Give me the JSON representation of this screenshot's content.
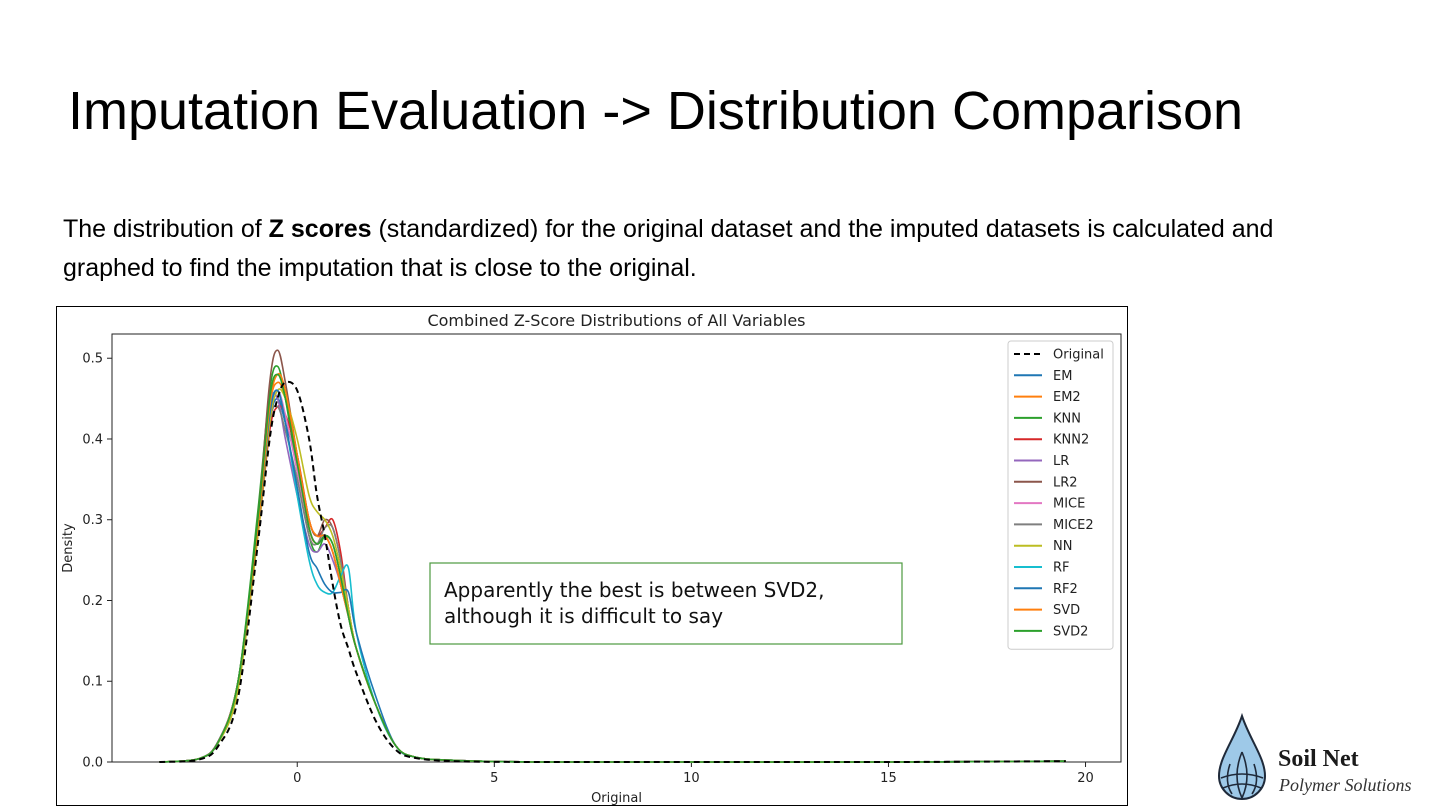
{
  "slide": {
    "title": "Imputation Evaluation -> Distribution Comparison",
    "body_prefix": "The distribution of ",
    "body_bold": "Z scores",
    "body_suffix": " (standardized) for the original dataset and the imputed datasets is calculated and graphed to find the imputation that is close to the original."
  },
  "logo": {
    "name": "Soil Net",
    "subtitle": "Polymer Solutions",
    "colors": {
      "drop": "#9ec9e8",
      "outline": "#1f2a3a"
    }
  },
  "chart_data": {
    "type": "line",
    "title": "Combined Z-Score Distributions of All Variables",
    "xlabel": "Original",
    "ylabel": "Density",
    "xlim": [
      -4.7,
      20.9
    ],
    "ylim": [
      0,
      0.53
    ],
    "x_ticks": [
      0,
      5,
      10,
      15,
      20
    ],
    "y_ticks": [
      0.0,
      0.1,
      0.2,
      0.3,
      0.4,
      0.5
    ],
    "grid": false,
    "legend_position": "upper right",
    "annotation": {
      "lines": [
        "Apparently the best is between SVD2,",
        "although it is difficult to say"
      ],
      "border_color": "#4e9a3f"
    },
    "x": [
      -3.5,
      -2.5,
      -2.0,
      -1.5,
      -1.0,
      -0.7,
      -0.5,
      -0.3,
      0.0,
      0.3,
      0.5,
      0.7,
      0.9,
      1.1,
      1.3,
      1.5,
      2.0,
      2.5,
      3.0,
      4.0,
      6.0,
      10.0,
      15.0,
      19.5
    ],
    "series": [
      {
        "name": "Original",
        "color": "#000000",
        "dash": true,
        "values": [
          0.0,
          0.003,
          0.02,
          0.08,
          0.27,
          0.4,
          0.45,
          0.47,
          0.46,
          0.4,
          0.33,
          0.28,
          0.22,
          0.17,
          0.14,
          0.11,
          0.05,
          0.015,
          0.005,
          0.001,
          0.0,
          0.0,
          0.0,
          0.001
        ]
      },
      {
        "name": "EM",
        "color": "#1f77b4",
        "values": [
          0.0,
          0.004,
          0.025,
          0.1,
          0.29,
          0.42,
          0.45,
          0.42,
          0.37,
          0.29,
          0.27,
          0.28,
          0.26,
          0.22,
          0.18,
          0.14,
          0.07,
          0.02,
          0.006,
          0.002,
          0.0,
          0.0,
          0.0,
          0.001
        ]
      },
      {
        "name": "EM2",
        "color": "#ff7f0e",
        "values": [
          0.0,
          0.004,
          0.025,
          0.1,
          0.3,
          0.44,
          0.47,
          0.45,
          0.38,
          0.29,
          0.27,
          0.28,
          0.26,
          0.22,
          0.18,
          0.14,
          0.07,
          0.02,
          0.006,
          0.002,
          0.0,
          0.0,
          0.0,
          0.001
        ]
      },
      {
        "name": "KNN",
        "color": "#2ca02c",
        "values": [
          0.0,
          0.004,
          0.026,
          0.1,
          0.31,
          0.46,
          0.49,
          0.45,
          0.36,
          0.28,
          0.26,
          0.28,
          0.27,
          0.23,
          0.18,
          0.14,
          0.07,
          0.02,
          0.006,
          0.002,
          0.0,
          0.0,
          0.0,
          0.001
        ]
      },
      {
        "name": "KNN2",
        "color": "#d62728",
        "values": [
          0.0,
          0.004,
          0.025,
          0.1,
          0.28,
          0.41,
          0.44,
          0.43,
          0.38,
          0.3,
          0.28,
          0.29,
          0.3,
          0.26,
          0.19,
          0.14,
          0.07,
          0.02,
          0.006,
          0.002,
          0.0,
          0.0,
          0.0,
          0.001
        ]
      },
      {
        "name": "LR",
        "color": "#9467bd",
        "values": [
          0.0,
          0.004,
          0.026,
          0.1,
          0.29,
          0.44,
          0.45,
          0.4,
          0.33,
          0.27,
          0.26,
          0.27,
          0.25,
          0.22,
          0.18,
          0.14,
          0.07,
          0.02,
          0.006,
          0.002,
          0.0,
          0.0,
          0.0,
          0.001
        ]
      },
      {
        "name": "LR2",
        "color": "#8c564b",
        "values": [
          0.0,
          0.004,
          0.026,
          0.1,
          0.3,
          0.47,
          0.51,
          0.47,
          0.38,
          0.3,
          0.28,
          0.3,
          0.29,
          0.25,
          0.19,
          0.14,
          0.07,
          0.02,
          0.006,
          0.002,
          0.0,
          0.0,
          0.0,
          0.001
        ]
      },
      {
        "name": "MICE",
        "color": "#e377c2",
        "values": [
          0.0,
          0.004,
          0.025,
          0.1,
          0.29,
          0.43,
          0.46,
          0.43,
          0.36,
          0.29,
          0.27,
          0.28,
          0.26,
          0.22,
          0.18,
          0.14,
          0.07,
          0.02,
          0.006,
          0.002,
          0.0,
          0.0,
          0.0,
          0.001
        ]
      },
      {
        "name": "MICE2",
        "color": "#7f7f7f",
        "values": [
          0.0,
          0.004,
          0.025,
          0.1,
          0.29,
          0.42,
          0.44,
          0.41,
          0.35,
          0.28,
          0.27,
          0.29,
          0.29,
          0.25,
          0.19,
          0.14,
          0.07,
          0.02,
          0.006,
          0.002,
          0.0,
          0.0,
          0.0,
          0.001
        ]
      },
      {
        "name": "NN",
        "color": "#bcbd22",
        "values": [
          0.0,
          0.004,
          0.024,
          0.09,
          0.28,
          0.42,
          0.46,
          0.45,
          0.4,
          0.33,
          0.31,
          0.3,
          0.28,
          0.24,
          0.19,
          0.14,
          0.07,
          0.02,
          0.006,
          0.002,
          0.0,
          0.0,
          0.0,
          0.001
        ]
      },
      {
        "name": "RF",
        "color": "#17becf",
        "values": [
          0.0,
          0.004,
          0.025,
          0.1,
          0.29,
          0.43,
          0.46,
          0.42,
          0.33,
          0.25,
          0.22,
          0.21,
          0.21,
          0.23,
          0.24,
          0.16,
          0.07,
          0.02,
          0.006,
          0.002,
          0.0,
          0.0,
          0.0,
          0.001
        ]
      },
      {
        "name": "RF2",
        "color": "#1f77b4",
        "values": [
          0.0,
          0.004,
          0.025,
          0.1,
          0.29,
          0.43,
          0.46,
          0.42,
          0.34,
          0.26,
          0.24,
          0.22,
          0.21,
          0.21,
          0.21,
          0.16,
          0.08,
          0.02,
          0.006,
          0.002,
          0.0,
          0.0,
          0.0,
          0.001
        ]
      },
      {
        "name": "SVD",
        "color": "#ff7f0e",
        "values": [
          0.0,
          0.004,
          0.025,
          0.1,
          0.29,
          0.44,
          0.48,
          0.46,
          0.38,
          0.3,
          0.28,
          0.28,
          0.26,
          0.22,
          0.18,
          0.14,
          0.07,
          0.02,
          0.006,
          0.002,
          0.0,
          0.0,
          0.0,
          0.001
        ]
      },
      {
        "name": "SVD2",
        "color": "#2ca02c",
        "values": [
          0.0,
          0.004,
          0.025,
          0.1,
          0.3,
          0.45,
          0.48,
          0.45,
          0.37,
          0.29,
          0.27,
          0.28,
          0.27,
          0.23,
          0.18,
          0.14,
          0.07,
          0.02,
          0.006,
          0.002,
          0.0,
          0.0,
          0.0,
          0.001
        ]
      }
    ]
  }
}
